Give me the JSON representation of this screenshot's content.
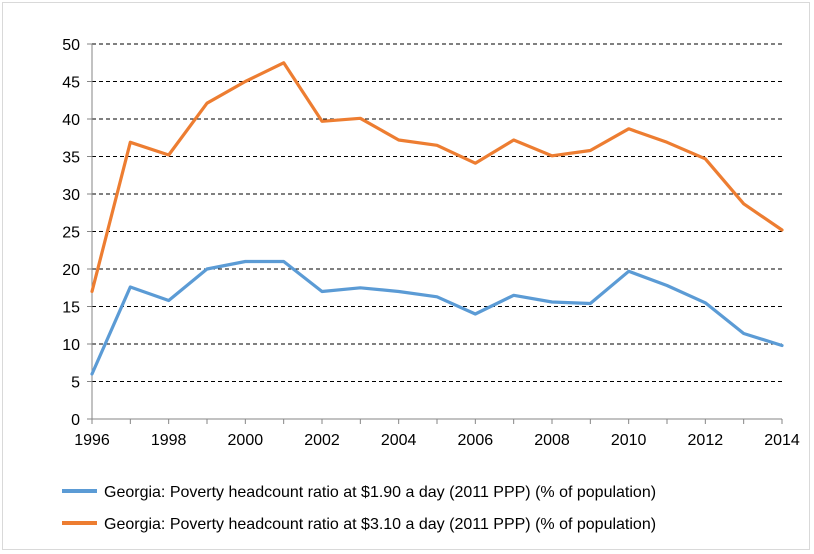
{
  "chart_data": {
    "type": "line",
    "title": "",
    "xlabel": "",
    "ylabel": "",
    "x": [
      1996,
      1997,
      1998,
      1999,
      2000,
      2001,
      2002,
      2003,
      2004,
      2005,
      2006,
      2007,
      2008,
      2009,
      2010,
      2011,
      2012,
      2013,
      2014
    ],
    "xticks": [
      "1996",
      "1998",
      "2000",
      "2002",
      "2004",
      "2006",
      "2008",
      "2010",
      "2012",
      "2014"
    ],
    "yticks": [
      "0",
      "5",
      "10",
      "15",
      "20",
      "25",
      "30",
      "35",
      "40",
      "45",
      "50"
    ],
    "ylim": [
      0,
      50
    ],
    "xlim": [
      1996,
      2014
    ],
    "grid": "horizontal dashed",
    "legend_position": "bottom",
    "series": [
      {
        "name": "Georgia: Poverty headcount ratio at $1.90 a day (2011 PPP) (% of population)",
        "color": "#5b9bd5",
        "values": [
          6.0,
          17.6,
          15.8,
          20.0,
          21.0,
          21.0,
          17.0,
          17.5,
          17.0,
          16.3,
          14.0,
          16.5,
          15.6,
          15.4,
          19.7,
          17.8,
          15.5,
          11.4,
          9.8
        ]
      },
      {
        "name": "Georgia: Poverty headcount ratio at $3.10 a day (2011 PPP) (% of population)",
        "color": "#ed7d31",
        "values": [
          17.0,
          36.9,
          35.2,
          42.1,
          45.0,
          47.5,
          39.7,
          40.1,
          37.2,
          36.5,
          34.1,
          37.2,
          35.1,
          35.8,
          38.7,
          36.9,
          34.7,
          28.7,
          25.2
        ]
      }
    ]
  }
}
